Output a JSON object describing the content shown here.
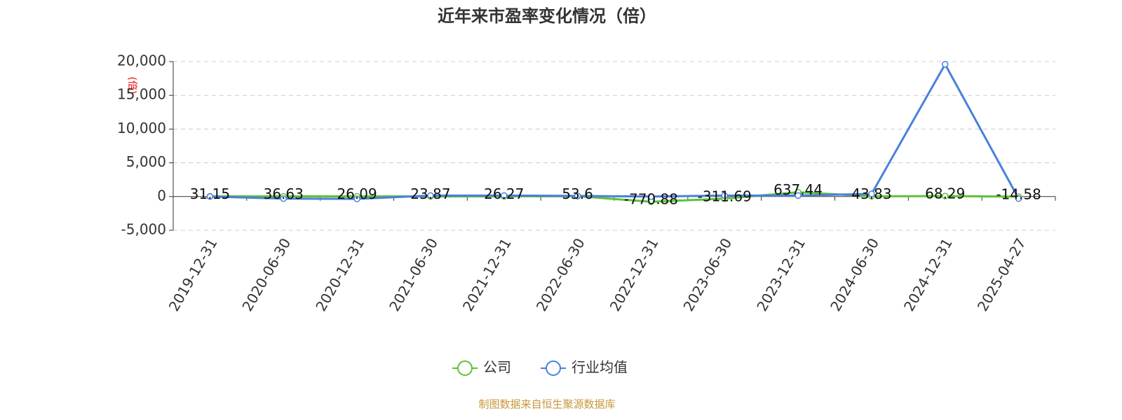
{
  "chart_data": {
    "type": "line",
    "title": "近年来市盈率变化情况（倍）",
    "y_label": "(倍)",
    "source": "制图数据来自恒生聚源数据库",
    "categories": [
      "2019-12-31",
      "2020-06-30",
      "2020-12-31",
      "2021-06-30",
      "2021-12-31",
      "2022-06-30",
      "2022-12-31",
      "2023-06-30",
      "2023-12-31",
      "2024-06-30",
      "2024-12-31",
      "2025-04-27"
    ],
    "series": [
      {
        "name": "公司",
        "color": "#5cc236",
        "values": [
          31.15,
          36.63,
          26.09,
          23.87,
          26.27,
          53.6,
          -770.88,
          -311.69,
          637.44,
          43.83,
          68.29,
          -14.58
        ]
      },
      {
        "name": "行业均值",
        "color": "#4a80dc",
        "values": [
          0,
          -300,
          -350,
          150,
          150,
          100,
          0,
          150,
          150,
          400,
          19600,
          -300
        ]
      }
    ],
    "ylim": [
      -5000,
      20000
    ],
    "yticks": [
      {
        "value": -5000,
        "label": "-5,000"
      },
      0,
      {
        "value": 5000,
        "label": "5,000"
      },
      {
        "value": 10000,
        "label": "10,000"
      },
      {
        "value": 15000,
        "label": "15,000"
      },
      {
        "value": 20000,
        "label": "20,000"
      }
    ],
    "grid": true,
    "legend": "bottom"
  }
}
